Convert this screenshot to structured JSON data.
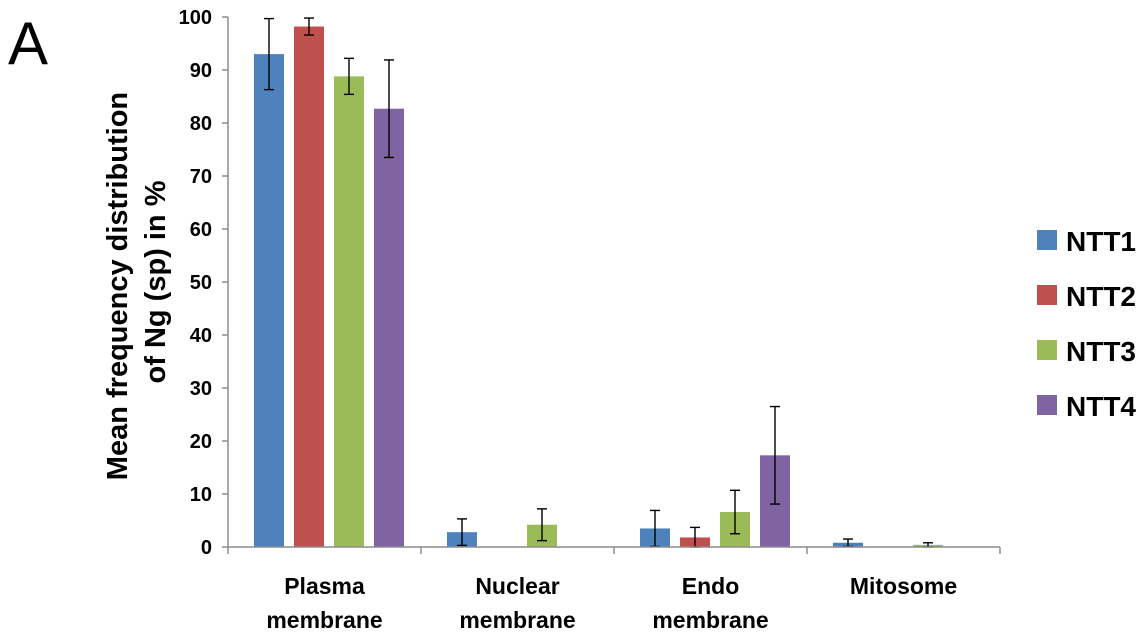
{
  "panel_label": "A",
  "chart_data": {
    "type": "bar",
    "title": "",
    "xlabel": "",
    "ylabel_lines": [
      "Mean frequency distribution",
      "of Ng (sp) in %"
    ],
    "categories": [
      {
        "lines": [
          "Plasma",
          "membrane"
        ]
      },
      {
        "lines": [
          "Nuclear",
          "membrane"
        ]
      },
      {
        "lines": [
          "Endo",
          "membrane"
        ]
      },
      {
        "lines": [
          "Mitosome"
        ]
      }
    ],
    "ylim": [
      0,
      100
    ],
    "yticks": [
      0,
      10,
      20,
      30,
      40,
      50,
      60,
      70,
      80,
      90,
      100
    ],
    "grid": false,
    "legend_position": "right",
    "series": [
      {
        "name": "NTT1",
        "color": "#4f81bd",
        "values": [
          93,
          2.8,
          3.5,
          0.8
        ],
        "errors": [
          6.7,
          2.5,
          3.4,
          0.7
        ]
      },
      {
        "name": "NTT2",
        "color": "#c0504d",
        "values": [
          98.2,
          0,
          1.8,
          0
        ],
        "errors": [
          1.6,
          0,
          1.9,
          0
        ]
      },
      {
        "name": "NTT3",
        "color": "#9bbb59",
        "values": [
          88.8,
          4.2,
          6.6,
          0.4
        ],
        "errors": [
          3.4,
          3.0,
          4.1,
          0.4
        ]
      },
      {
        "name": "NTT4",
        "color": "#8064a2",
        "values": [
          82.7,
          0,
          17.3,
          0
        ],
        "errors": [
          9.2,
          0,
          9.2,
          0
        ]
      }
    ]
  }
}
